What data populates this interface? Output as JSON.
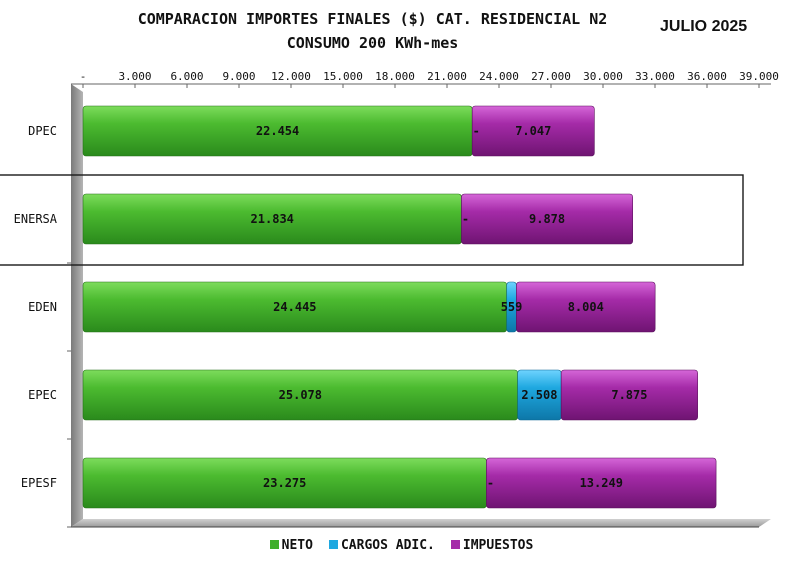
{
  "header": {
    "title_line1": "COMPARACION IMPORTES FINALES ($) CAT. RESIDENCIAL N2",
    "title_line2": "CONSUMO 200 KWh-mes",
    "period": "JULIO 2025"
  },
  "chart_data": {
    "type": "bar",
    "orientation": "horizontal",
    "stacked": true,
    "title": "COMPARACION IMPORTES FINALES ($) CAT. RESIDENCIAL N2",
    "subtitle": "CONSUMO 200 KWh-mes",
    "categories": [
      "DPEC",
      "ENERSA",
      "EDEN",
      "EPEC",
      "EPESF"
    ],
    "series": [
      {
        "name": "NETO",
        "color": "#3fae2a",
        "values": [
          22454,
          21834,
          24445,
          25078,
          23275
        ],
        "labels": [
          "22.454",
          "21.834",
          "24.445",
          "25.078",
          "23.275"
        ]
      },
      {
        "name": "CARGOS ADIC.",
        "color": "#1fa8e0",
        "values": [
          0,
          0,
          559,
          2508,
          0
        ],
        "labels": [
          "-",
          "-",
          "559",
          "2.508",
          "-"
        ]
      },
      {
        "name": "IMPUESTOS",
        "color": "#a52ba8",
        "values": [
          7047,
          9878,
          8004,
          7875,
          13249
        ],
        "labels": [
          "7.047",
          "9.878",
          "8.004",
          "7.875",
          "13.249"
        ]
      }
    ],
    "xlim": [
      0,
      39000
    ],
    "x_ticks": [
      0,
      3000,
      6000,
      9000,
      12000,
      15000,
      18000,
      21000,
      24000,
      27000,
      30000,
      33000,
      36000,
      39000
    ],
    "x_tick_labels": [
      "-",
      "3.000",
      "6.000",
      "9.000",
      "12.000",
      "15.000",
      "18.000",
      "21.000",
      "24.000",
      "27.000",
      "30.000",
      "33.000",
      "36.000",
      "39.000"
    ],
    "axis_position": "top",
    "grid": false,
    "legend": "bottom",
    "highlighted_category": "ENERSA"
  }
}
